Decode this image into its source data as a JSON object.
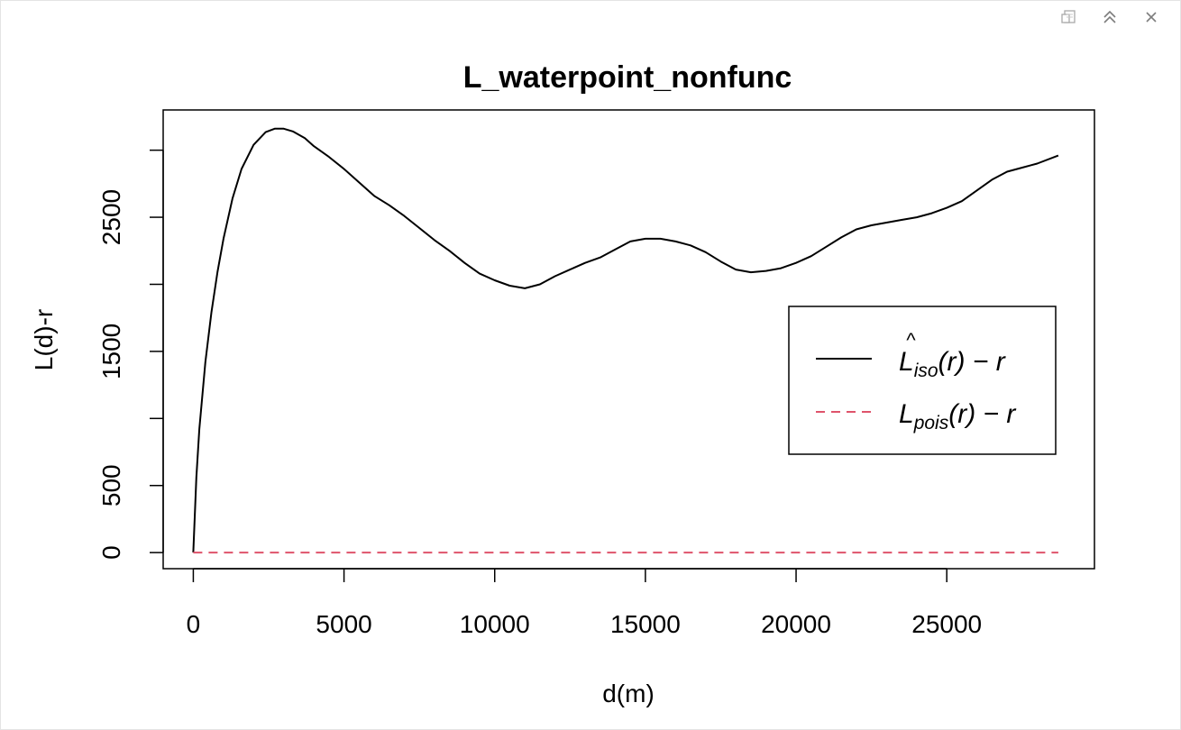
{
  "toolbar": {
    "icons": [
      "popout-icon",
      "collapse-icon",
      "close-icon"
    ]
  },
  "chart_data": {
    "type": "line",
    "title": "L_waterpoint_nonfunc",
    "xlabel": "d(m)",
    "ylabel": "L(d)-r",
    "xlim": [
      -1000,
      29900
    ],
    "ylim": [
      -120,
      3300
    ],
    "x_ticks": [
      0,
      5000,
      10000,
      15000,
      20000,
      25000
    ],
    "y_ticks": [
      0,
      500,
      1500,
      2500
    ],
    "y_minor_ticks": [
      1000,
      2000,
      3000
    ],
    "grid": false,
    "legend_position": "right",
    "series": [
      {
        "name": "L̂iso(r) − r",
        "color": "#000000",
        "style": "solid",
        "x": [
          0,
          100,
          200,
          400,
          600,
          800,
          1000,
          1300,
          1600,
          2000,
          2400,
          2700,
          3000,
          3300,
          3700,
          4000,
          4500,
          5000,
          5500,
          6000,
          6500,
          7000,
          7500,
          8000,
          8500,
          9000,
          9500,
          10000,
          10500,
          11000,
          11500,
          12000,
          12500,
          13000,
          13500,
          14000,
          14500,
          15000,
          15500,
          16000,
          16500,
          17000,
          17500,
          18000,
          18500,
          19000,
          19500,
          20000,
          20500,
          21000,
          21500,
          22000,
          22500,
          23000,
          23500,
          24000,
          24500,
          25000,
          25500,
          26000,
          26500,
          27000,
          27500,
          28000,
          28700
        ],
        "values": [
          0,
          560,
          920,
          1420,
          1790,
          2090,
          2340,
          2640,
          2860,
          3040,
          3135,
          3160,
          3160,
          3140,
          3090,
          3030,
          2950,
          2860,
          2760,
          2660,
          2590,
          2510,
          2420,
          2330,
          2250,
          2160,
          2080,
          2030,
          1990,
          1970,
          2000,
          2060,
          2110,
          2160,
          2200,
          2260,
          2320,
          2340,
          2340,
          2320,
          2290,
          2240,
          2170,
          2110,
          2090,
          2100,
          2120,
          2160,
          2210,
          2280,
          2350,
          2410,
          2440,
          2460,
          2480,
          2500,
          2530,
          2570,
          2620,
          2700,
          2780,
          2840,
          2870,
          2900,
          2960
        ]
      },
      {
        "name": "Lpois(r) − r",
        "color": "#df536b",
        "style": "dashed",
        "x": [
          0,
          28700
        ],
        "values": [
          0,
          0
        ]
      }
    ],
    "legend": [
      {
        "main": "L",
        "hat": true,
        "sub": "iso",
        "rest": "(r) − r"
      },
      {
        "main": "L",
        "hat": false,
        "sub": "pois",
        "rest": "(r) − r"
      }
    ]
  }
}
